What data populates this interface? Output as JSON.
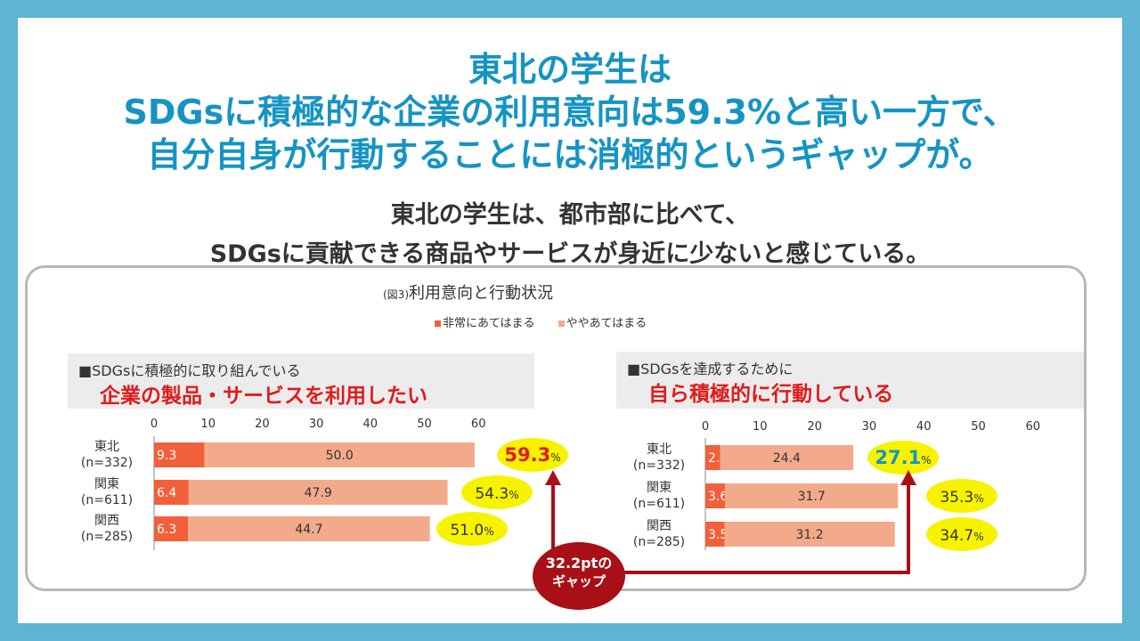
{
  "headline": {
    "line1": "東北の学生は",
    "line2": "SDGsに積極的な企業の利用意向は59.3%と高い一方で、",
    "line3": "自分自身が行動することには消極的というギャップが。"
  },
  "subhead": {
    "line1": "東北の学生は、都市部に比べて、",
    "line2": "SDGsに貢献できる商品やサービスが身近に少ないと感じている。"
  },
  "figure": {
    "prefix": "(図3)",
    "title": "利用意向と行動状況"
  },
  "legend": [
    {
      "label": "非常にあてはまる",
      "color": "#f1603a"
    },
    {
      "label": "ややあてはまる",
      "color": "#f2aa8a"
    }
  ],
  "left_card": {
    "line1": "■SDGsに積極的に取り組んでいる",
    "line2": "企業の製品・サービスを利用したい"
  },
  "right_card": {
    "line1": "■SDGsを達成するために",
    "line2": "自ら積極的に行動している"
  },
  "gap": {
    "line1": "32.2ptの",
    "line2": "ギャップ",
    "color": "#a80f16"
  },
  "chart_data": [
    {
      "type": "bar",
      "orientation": "horizontal",
      "stacked": true,
      "title": "企業の製品・サービスを利用したい",
      "categories": [
        "東北",
        "関東",
        "関西"
      ],
      "sample_sizes": [
        "(n=332)",
        "(n=611)",
        "(n=285)"
      ],
      "xlim": [
        0,
        60
      ],
      "xticks": [
        0,
        10,
        20,
        30,
        40,
        50,
        60
      ],
      "series": [
        {
          "name": "非常にあてはまる",
          "values": [
            9.3,
            6.4,
            6.3
          ],
          "labels": [
            "9.3",
            "6.4",
            "6.3"
          ],
          "color": "#f1603a"
        },
        {
          "name": "ややあてはまる",
          "values": [
            50.0,
            47.9,
            44.7
          ],
          "labels": [
            "50.0",
            "47.9",
            "44.7"
          ],
          "color": "#f2aa8a"
        }
      ],
      "totals": [
        59.3,
        54.3,
        51.0
      ],
      "total_labels": [
        "59.3",
        "54.3",
        "51.0"
      ],
      "total_unit": "%",
      "total_colors": [
        "#e01b1b",
        "#333333",
        "#333333"
      ]
    },
    {
      "type": "bar",
      "orientation": "horizontal",
      "stacked": true,
      "title": "自ら積極的に行動している",
      "categories": [
        "東北",
        "関東",
        "関西"
      ],
      "sample_sizes": [
        "(n=332)",
        "(n=611)",
        "(n=285)"
      ],
      "xlim": [
        0,
        60
      ],
      "xticks": [
        0,
        10,
        20,
        30,
        40,
        50,
        60
      ],
      "series": [
        {
          "name": "非常にあてはまる",
          "values": [
            2.7,
            3.6,
            3.5
          ],
          "labels": [
            "2.7",
            "3.6",
            "3.5"
          ],
          "color": "#f1603a"
        },
        {
          "name": "ややあてはまる",
          "values": [
            24.4,
            31.7,
            31.2
          ],
          "labels": [
            "24.4",
            "31.7",
            "31.2"
          ],
          "color": "#f2aa8a"
        }
      ],
      "totals": [
        27.1,
        35.3,
        34.7
      ],
      "total_labels": [
        "27.1",
        "35.3",
        "34.7"
      ],
      "total_unit": "%",
      "total_colors": [
        "#1594c4",
        "#333333",
        "#333333"
      ]
    }
  ]
}
